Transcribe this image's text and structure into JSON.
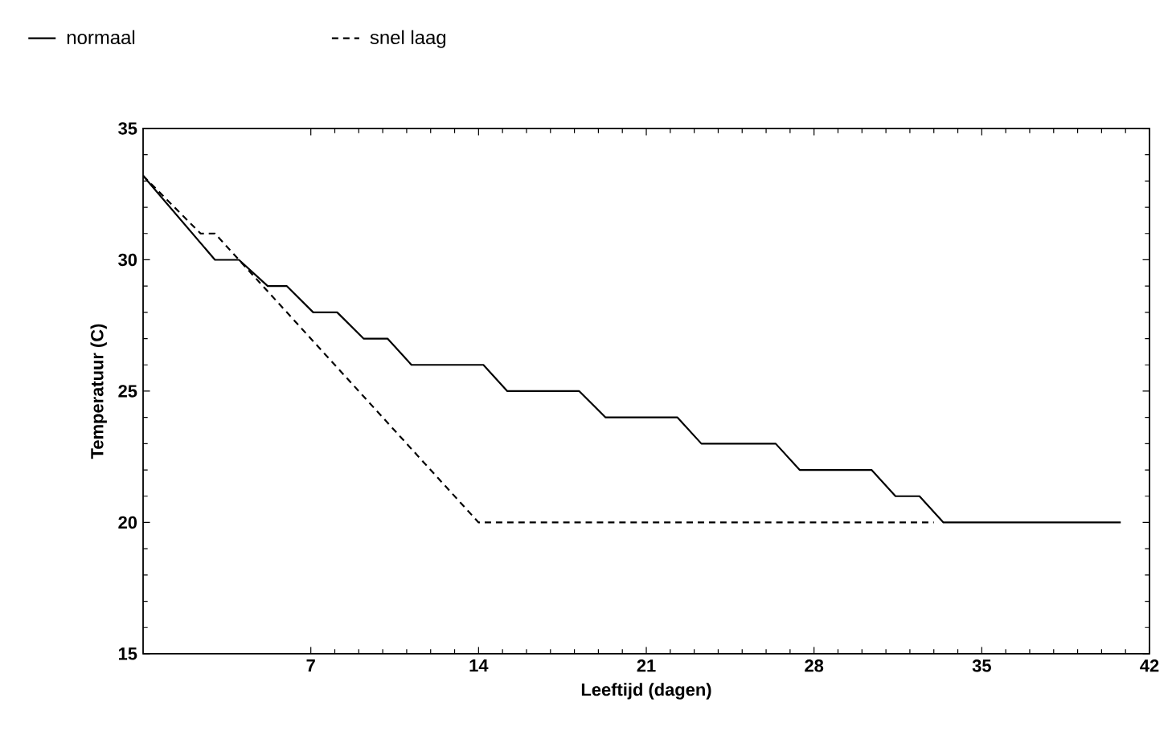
{
  "chart_data": {
    "type": "line",
    "xlabel": "Leeftijd (dagen)",
    "ylabel": "Temperatuur (C)",
    "xlim": [
      0,
      42
    ],
    "ylim": [
      15,
      35
    ],
    "xticks": [
      7,
      14,
      21,
      28,
      35,
      42
    ],
    "yticks": [
      15,
      20,
      25,
      30,
      35
    ],
    "grid": false,
    "legend": "top",
    "marker": "none",
    "series": [
      {
        "name": "normaal",
        "color": "#000000",
        "line_style": "solid",
        "x": [
          0,
          3,
          4,
          5.2,
          6,
          7.1,
          8.1,
          9.2,
          10.2,
          11.2,
          14.2,
          15.2,
          18.2,
          19.3,
          22.3,
          23.3,
          26.4,
          27.4,
          30.4,
          31.4,
          32.4,
          33.4,
          40.8
        ],
        "values": [
          33.2,
          30,
          30,
          29,
          29,
          28,
          28,
          27,
          27,
          26,
          26,
          25,
          25,
          24,
          24,
          23,
          23,
          22,
          22,
          21,
          21,
          20,
          20
        ]
      },
      {
        "name": "snel laag",
        "color": "#000000",
        "line_style": "dashed",
        "x": [
          0,
          2.4,
          3,
          14,
          33
        ],
        "values": [
          33.2,
          31,
          31,
          20,
          20
        ]
      }
    ]
  }
}
